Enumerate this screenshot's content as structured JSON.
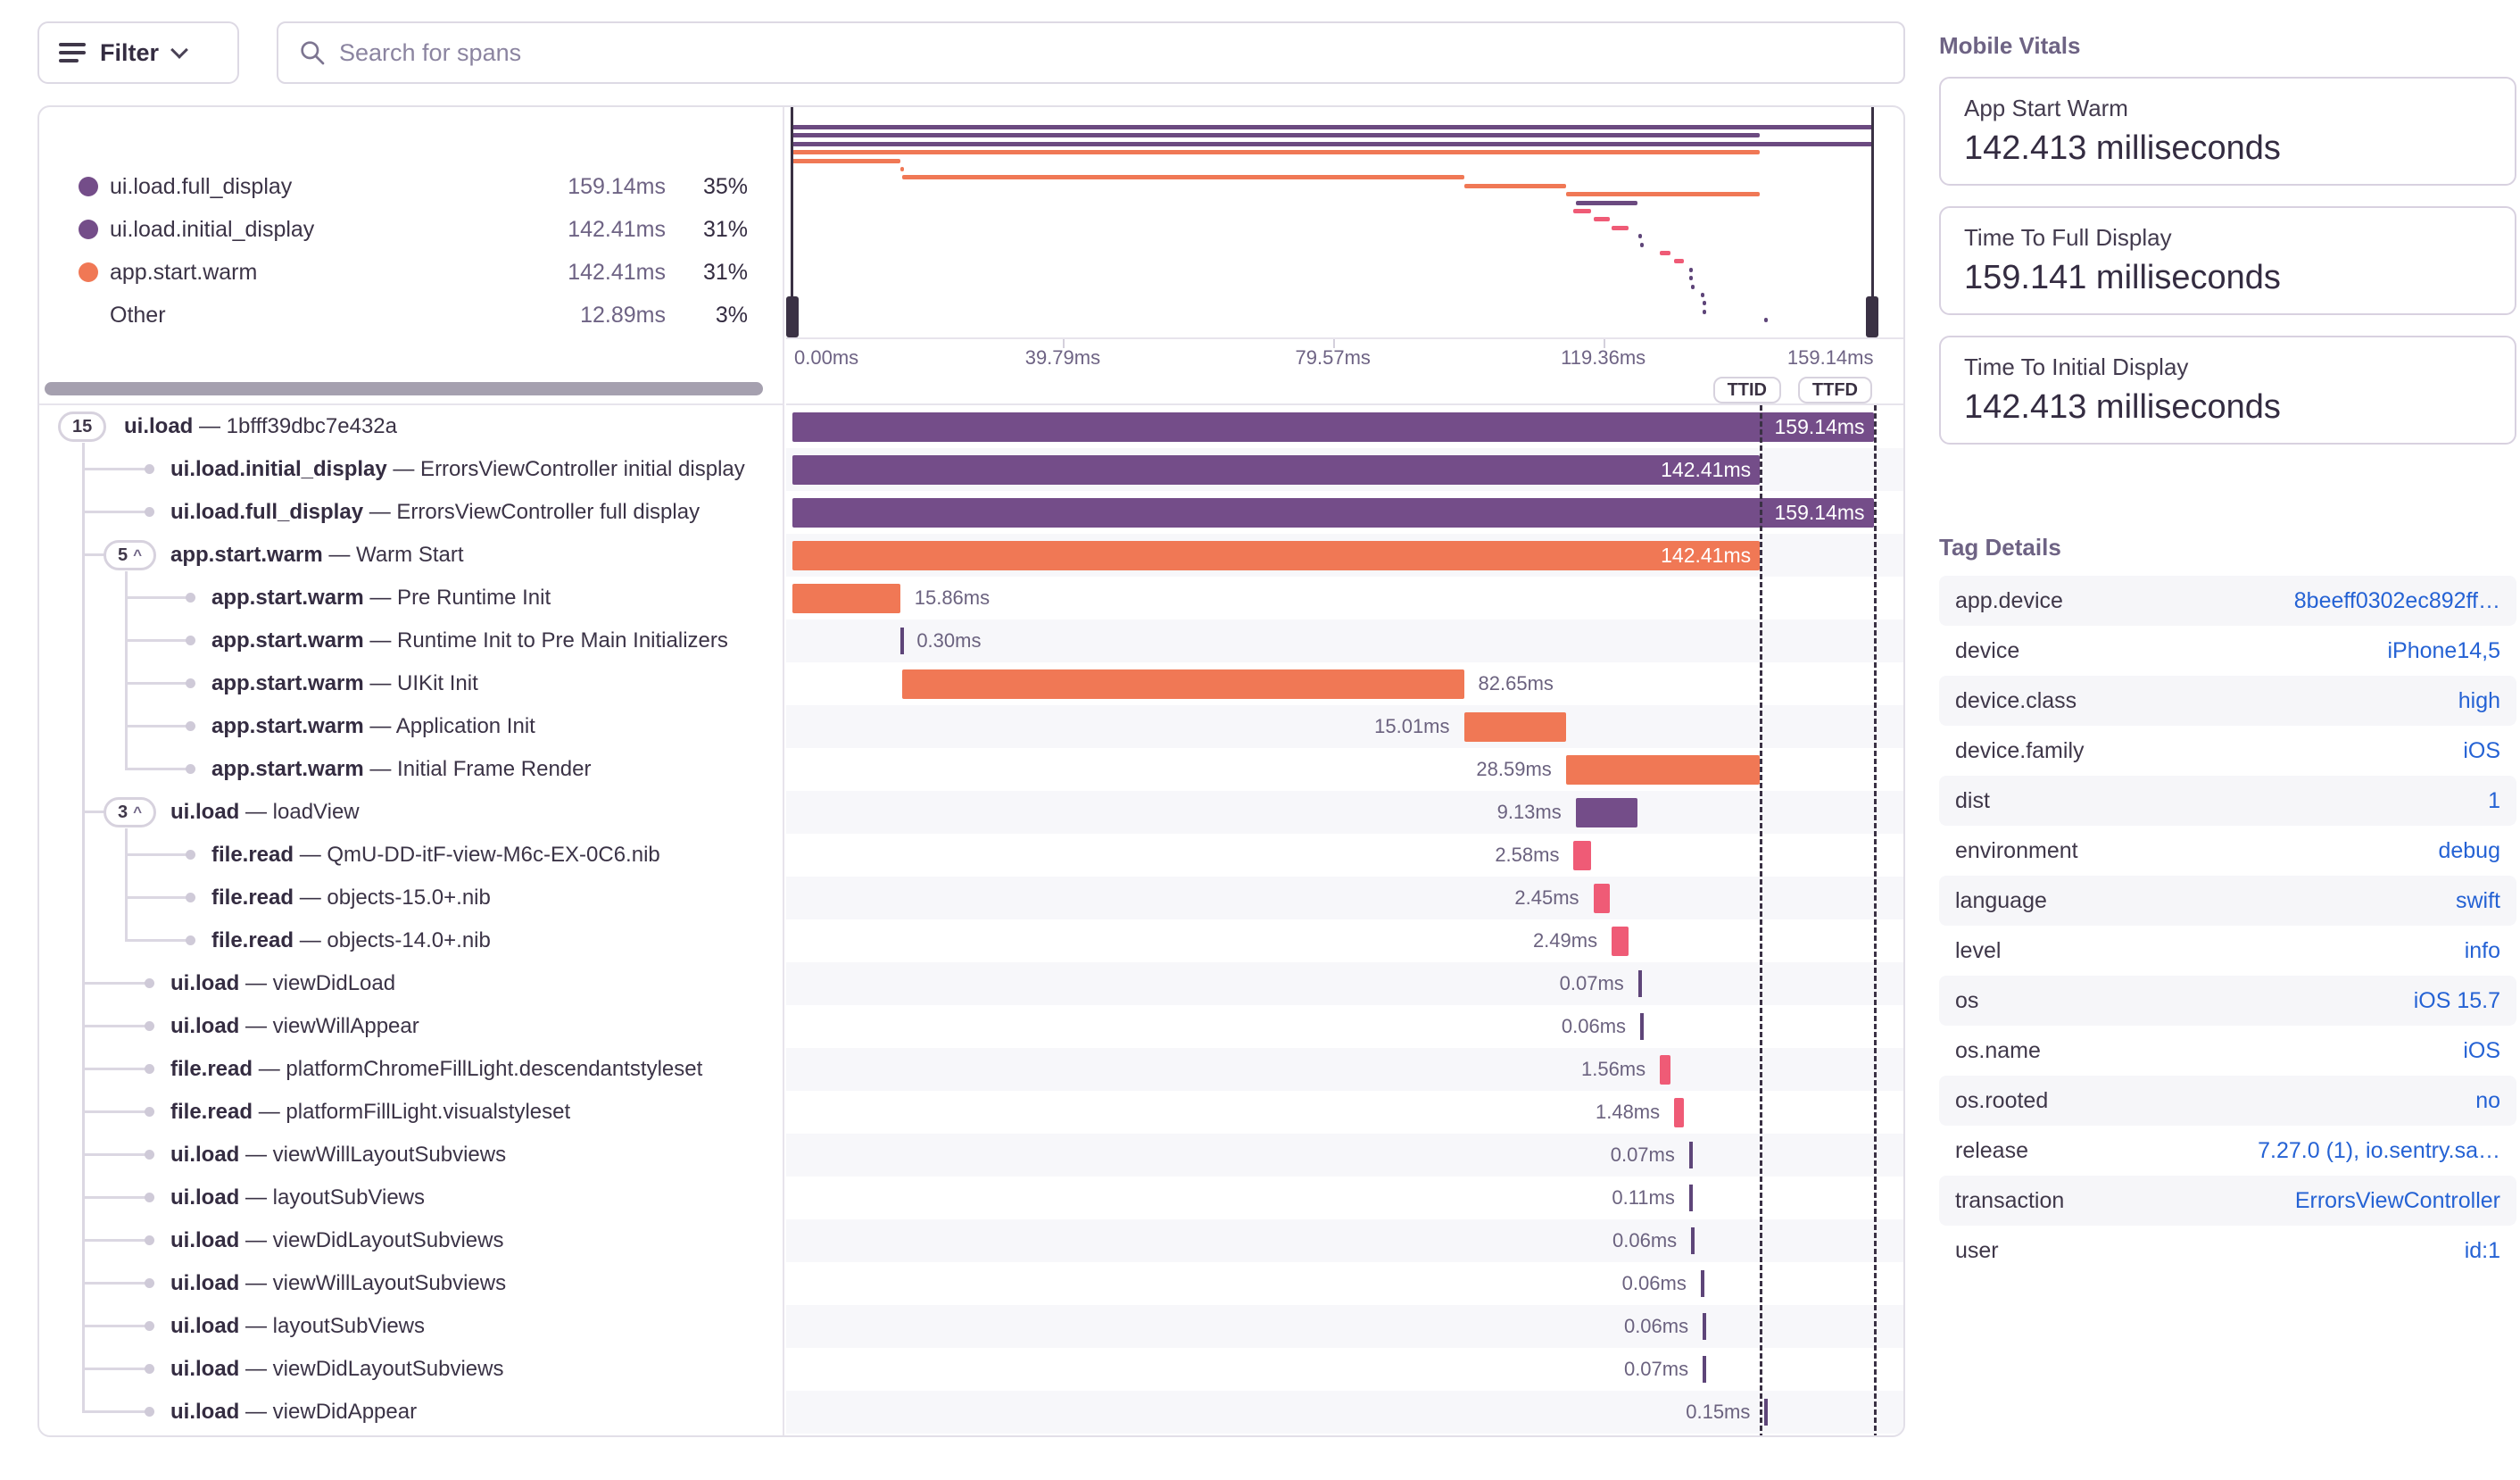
{
  "header": {
    "filter_label": "Filter",
    "search_placeholder": "Search for spans"
  },
  "legend": {
    "items": [
      {
        "label": "ui.load.full_display",
        "value": "159.14ms",
        "pct": "35%",
        "color": "purple"
      },
      {
        "label": "ui.load.initial_display",
        "value": "142.41ms",
        "pct": "31%",
        "color": "purple"
      },
      {
        "label": "app.start.warm",
        "value": "142.41ms",
        "pct": "31%",
        "color": "orange"
      },
      {
        "label": "Other",
        "value": "12.89ms",
        "pct": "3%",
        "color": null
      }
    ]
  },
  "minimap": {
    "axis": [
      {
        "label": "0.00ms",
        "ms": 0
      },
      {
        "label": "39.79ms",
        "ms": 39.79
      },
      {
        "label": "79.57ms",
        "ms": 79.57
      },
      {
        "label": "119.36ms",
        "ms": 119.36
      },
      {
        "label": "159.14ms",
        "ms": 159.14
      }
    ]
  },
  "controls": {
    "ttid": "TTID",
    "ttfd": "TTFD"
  },
  "trace": {
    "total_ms": 159.14,
    "ttid_ms": 142.41,
    "ttfd_ms": 159.14,
    "sep": "—",
    "spans": [
      {
        "op": "ui.load",
        "desc": "1bfff39dbc7e432a",
        "badge": "15",
        "chevron": false,
        "depth": 0,
        "start": 0,
        "dur": 159.14,
        "color": "purple",
        "label": "159.14ms",
        "label_pos": "inside"
      },
      {
        "op": "ui.load.initial_display",
        "desc": "ErrorsViewController initial display",
        "depth": 1,
        "start": 0,
        "dur": 142.41,
        "color": "purple",
        "label": "142.41ms",
        "label_pos": "inside"
      },
      {
        "op": "ui.load.full_display",
        "desc": "ErrorsViewController full display",
        "depth": 1,
        "start": 0,
        "dur": 159.14,
        "color": "purple",
        "label": "159.14ms",
        "label_pos": "inside"
      },
      {
        "op": "app.start.warm",
        "desc": "Warm Start",
        "badge": "5",
        "chevron": true,
        "depth": 1,
        "start": 0,
        "dur": 142.41,
        "color": "orange",
        "label": "142.41ms",
        "label_pos": "inside"
      },
      {
        "op": "app.start.warm",
        "desc": "Pre Runtime Init",
        "depth": 2,
        "start": 0,
        "dur": 15.86,
        "color": "orange",
        "label": "15.86ms",
        "label_pos": "right"
      },
      {
        "op": "app.start.warm",
        "desc": "Runtime Init to Pre Main Initializers",
        "depth": 2,
        "start": 15.9,
        "dur": 0.3,
        "color": "orange",
        "label": "0.30ms",
        "label_pos": "right"
      },
      {
        "op": "app.start.warm",
        "desc": "UIKit Init",
        "depth": 2,
        "start": 16.2,
        "dur": 82.65,
        "color": "orange",
        "label": "82.65ms",
        "label_pos": "right"
      },
      {
        "op": "app.start.warm",
        "desc": "Application Init",
        "depth": 2,
        "start": 98.85,
        "dur": 15.01,
        "color": "orange",
        "label": "15.01ms",
        "label_pos": "left"
      },
      {
        "op": "app.start.warm",
        "desc": "Initial Frame Render",
        "depth": 2,
        "start": 113.86,
        "dur": 28.59,
        "color": "orange",
        "label": "28.59ms",
        "label_pos": "left"
      },
      {
        "op": "ui.load",
        "desc": "loadView",
        "badge": "3",
        "chevron": true,
        "depth": 1,
        "start": 115.3,
        "dur": 9.13,
        "color": "purple",
        "label": "9.13ms",
        "label_pos": "left"
      },
      {
        "op": "file.read",
        "desc": "QmU-DD-itF-view-M6c-EX-0C6.nib",
        "depth": 2,
        "start": 115.0,
        "dur": 2.58,
        "color": "pink",
        "label": "2.58ms",
        "label_pos": "left"
      },
      {
        "op": "file.read",
        "desc": "objects-15.0+.nib",
        "depth": 2,
        "start": 117.9,
        "dur": 2.45,
        "color": "pink",
        "label": "2.45ms",
        "label_pos": "left"
      },
      {
        "op": "file.read",
        "desc": "objects-14.0+.nib",
        "depth": 2,
        "start": 120.6,
        "dur": 2.49,
        "color": "pink",
        "label": "2.49ms",
        "label_pos": "left"
      },
      {
        "op": "ui.load",
        "desc": "viewDidLoad",
        "depth": 1,
        "start": 124.5,
        "dur": 0.07,
        "color": "tick",
        "label": "0.07ms",
        "label_pos": "left"
      },
      {
        "op": "ui.load",
        "desc": "viewWillAppear",
        "depth": 1,
        "start": 124.8,
        "dur": 0.06,
        "color": "tick",
        "label": "0.06ms",
        "label_pos": "left"
      },
      {
        "op": "file.read",
        "desc": "platformChromeFillLight.descendantstyleset",
        "depth": 1,
        "start": 127.7,
        "dur": 1.56,
        "color": "pink",
        "label": "1.56ms",
        "label_pos": "left"
      },
      {
        "op": "file.read",
        "desc": "platformFillLight.visualstyleset",
        "depth": 1,
        "start": 129.8,
        "dur": 1.48,
        "color": "pink",
        "label": "1.48ms",
        "label_pos": "left"
      },
      {
        "op": "ui.load",
        "desc": "viewWillLayoutSubviews",
        "depth": 1,
        "start": 132.0,
        "dur": 0.07,
        "color": "tick",
        "label": "0.07ms",
        "label_pos": "left"
      },
      {
        "op": "ui.load",
        "desc": "layoutSubViews",
        "depth": 1,
        "start": 132.0,
        "dur": 0.11,
        "color": "tick",
        "label": "0.11ms",
        "label_pos": "left"
      },
      {
        "op": "ui.load",
        "desc": "viewDidLayoutSubviews",
        "depth": 1,
        "start": 132.3,
        "dur": 0.06,
        "color": "tick",
        "label": "0.06ms",
        "label_pos": "left"
      },
      {
        "op": "ui.load",
        "desc": "viewWillLayoutSubviews",
        "depth": 1,
        "start": 133.7,
        "dur": 0.06,
        "color": "tick",
        "label": "0.06ms",
        "label_pos": "left"
      },
      {
        "op": "ui.load",
        "desc": "layoutSubViews",
        "depth": 1,
        "start": 134.0,
        "dur": 0.06,
        "color": "tick",
        "label": "0.06ms",
        "label_pos": "left"
      },
      {
        "op": "ui.load",
        "desc": "viewDidLayoutSubviews",
        "depth": 1,
        "start": 134.0,
        "dur": 0.07,
        "color": "tick",
        "label": "0.07ms",
        "label_pos": "left"
      },
      {
        "op": "ui.load",
        "desc": "viewDidAppear",
        "depth": 1,
        "start": 143.1,
        "dur": 0.15,
        "color": "tick",
        "label": "0.15ms",
        "label_pos": "left"
      }
    ]
  },
  "vitals": {
    "title": "Mobile Vitals",
    "cards": [
      {
        "label": "App Start Warm",
        "value": "142.413 milliseconds"
      },
      {
        "label": "Time To Full Display",
        "value": "159.141 milliseconds"
      },
      {
        "label": "Time To Initial Display",
        "value": "142.413 milliseconds"
      }
    ]
  },
  "tags": {
    "title": "Tag Details",
    "rows": [
      {
        "key": "app.device",
        "value": "8beeff0302ec892ff…"
      },
      {
        "key": "device",
        "value": "iPhone14,5"
      },
      {
        "key": "device.class",
        "value": "high"
      },
      {
        "key": "device.family",
        "value": "iOS"
      },
      {
        "key": "dist",
        "value": "1"
      },
      {
        "key": "environment",
        "value": "debug"
      },
      {
        "key": "language",
        "value": "swift"
      },
      {
        "key": "level",
        "value": "info"
      },
      {
        "key": "os",
        "value": "iOS 15.7"
      },
      {
        "key": "os.name",
        "value": "iOS"
      },
      {
        "key": "os.rooted",
        "value": "no"
      },
      {
        "key": "release",
        "value": "7.27.0 (1), io.sentry.sa…"
      },
      {
        "key": "transaction",
        "value": "ErrorsViewController"
      },
      {
        "key": "user",
        "value": "id:1"
      }
    ]
  },
  "colors": {
    "purple": "#744D89",
    "purpleMini": "#6B4A80",
    "orange": "#F07855",
    "pink": "#EF5B76",
    "tick": "#5E4579",
    "link": "#2562D4",
    "stripe": "#F7F7FA",
    "dashed": "#3A3144"
  }
}
